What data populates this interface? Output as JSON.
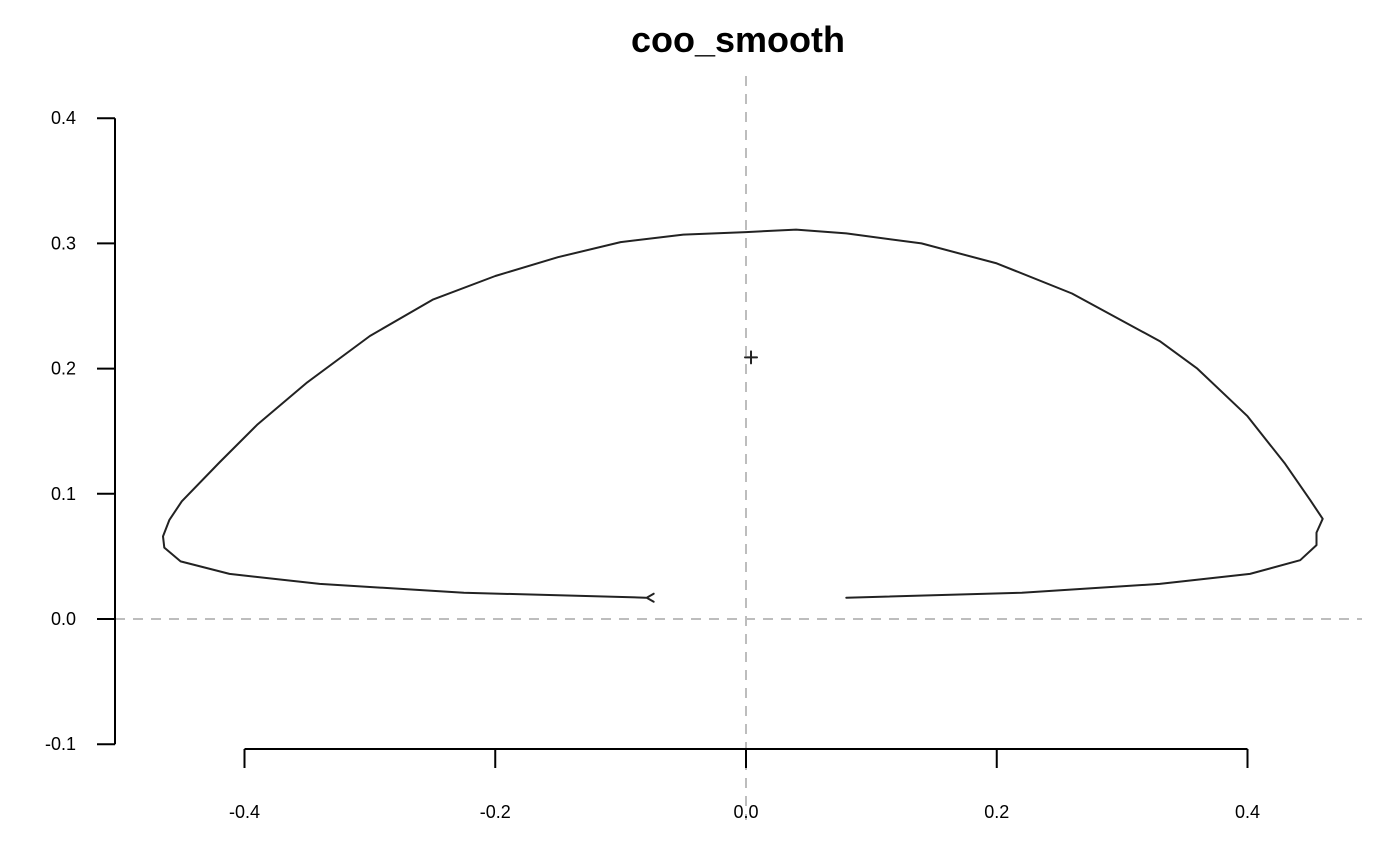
{
  "chart_data": {
    "type": "line",
    "title": "coo_smooth",
    "xlabel": "",
    "ylabel": "",
    "xlim": [
      -0.5,
      0.49
    ],
    "ylim": [
      -0.1,
      0.4
    ],
    "x_ticks": [
      -0.4,
      -0.2,
      0.0,
      0.2,
      0.4
    ],
    "x_tick_labels": [
      "-0.4",
      "-0.2",
      "0.0",
      "0.2",
      "0.4"
    ],
    "y_ticks": [
      -0.1,
      0.0,
      0.1,
      0.2,
      0.3,
      0.4
    ],
    "y_tick_labels": [
      "-0.1",
      "0.0",
      "0.1",
      "0.2",
      "0.3",
      "0.4"
    ],
    "grid": false,
    "reference_lines": {
      "x": 0.0,
      "y": 0.0,
      "style": "dashed"
    },
    "centroid": {
      "x": 0.004,
      "y": 0.209,
      "marker": "+"
    },
    "start_marker": {
      "x": -0.08,
      "y": 0.017,
      "marker": "<"
    },
    "series": [
      {
        "values": [
          [
            -0.08,
            0.017
          ],
          [
            -0.225,
            0.021
          ],
          [
            -0.34,
            0.028
          ],
          [
            -0.412,
            0.036
          ],
          [
            -0.451,
            0.046
          ],
          [
            -0.464,
            0.057
          ],
          [
            -0.465,
            0.066
          ],
          [
            -0.46,
            0.079
          ],
          [
            -0.45,
            0.094
          ],
          [
            -0.42,
            0.125
          ],
          [
            -0.39,
            0.155
          ],
          [
            -0.35,
            0.189
          ],
          [
            -0.3,
            0.226
          ],
          [
            -0.25,
            0.255
          ],
          [
            -0.2,
            0.274
          ],
          [
            -0.15,
            0.289
          ],
          [
            -0.1,
            0.301
          ],
          [
            -0.05,
            0.307
          ],
          [
            0.0,
            0.309
          ],
          [
            0.04,
            0.311
          ],
          [
            0.08,
            0.308
          ],
          [
            0.14,
            0.3
          ],
          [
            0.2,
            0.284
          ],
          [
            0.26,
            0.26
          ],
          [
            0.33,
            0.222
          ],
          [
            0.36,
            0.2
          ],
          [
            0.4,
            0.162
          ],
          [
            0.43,
            0.124
          ],
          [
            0.45,
            0.095
          ],
          [
            0.46,
            0.08
          ],
          [
            0.455,
            0.069
          ],
          [
            0.455,
            0.059
          ],
          [
            0.442,
            0.047
          ],
          [
            0.402,
            0.036
          ],
          [
            0.33,
            0.028
          ],
          [
            0.22,
            0.021
          ],
          [
            0.08,
            0.017
          ]
        ]
      }
    ]
  }
}
